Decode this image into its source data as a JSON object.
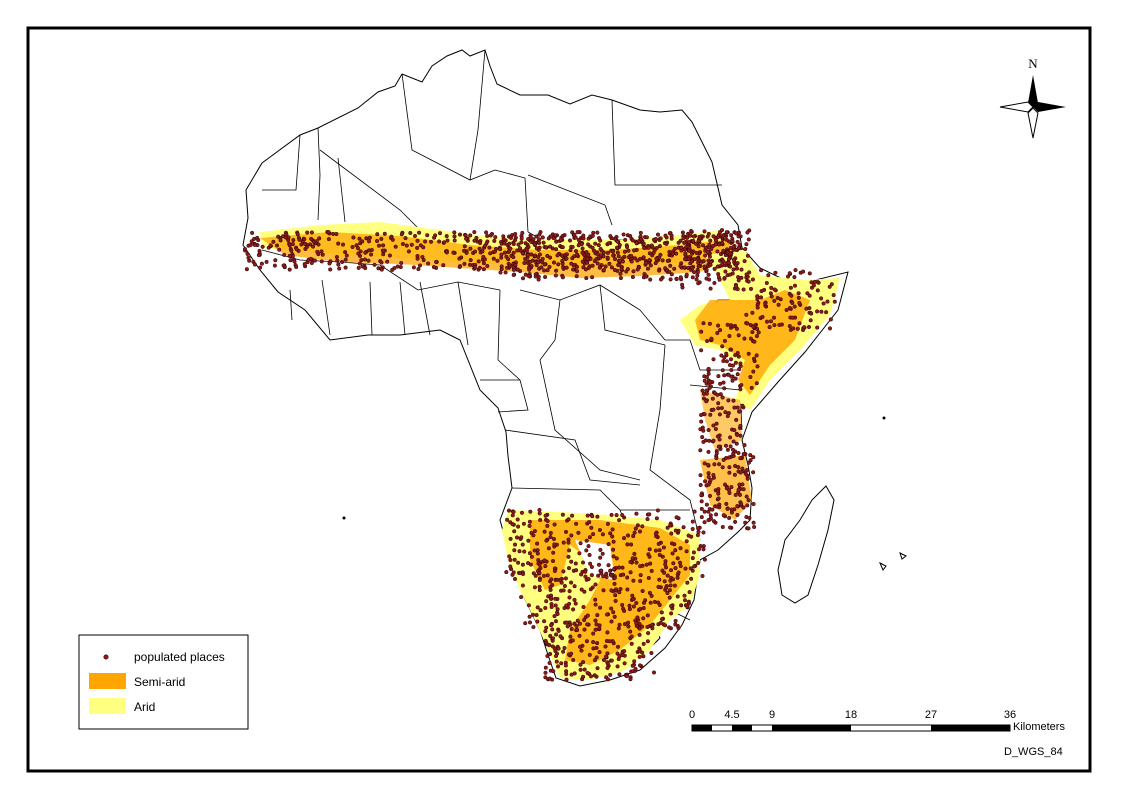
{
  "map": {
    "north_label": "N",
    "legend": {
      "items": [
        {
          "label": "populated places",
          "symbol": "dot",
          "color": "#8B1A1A",
          "outline": "#3a0a0a"
        },
        {
          "label": "Semi-arid",
          "symbol": "patch",
          "color": "#FFA500"
        },
        {
          "label": "Arid",
          "symbol": "patch",
          "color": "#FFFF80"
        }
      ]
    },
    "scale_bar": {
      "tick_labels": [
        "0",
        "4.5",
        "9",
        "18",
        "27",
        "36"
      ],
      "tick_values": [
        0,
        4.5,
        9,
        18,
        27,
        36
      ],
      "unit": "Kilometers"
    },
    "datum": "D_WGS_84",
    "colors": {
      "populated_places": "#8B1A1A",
      "semi_arid": "#FFA500",
      "arid": "#FFFF80",
      "land": "#ffffff",
      "borders": "#000000"
    }
  }
}
